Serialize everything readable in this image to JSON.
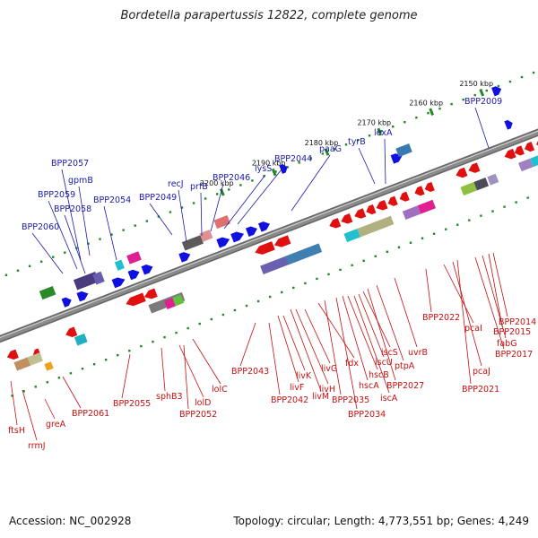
{
  "title": "Bordetella parapertussis 12822, complete genome",
  "footer": {
    "accession": "Accession: NC_002928",
    "summary": "Topology: circular; Length: 4,773,551 bp; Genes: 4,249"
  },
  "colors": {
    "forward_gene": "#1010e0",
    "reverse_gene": "#e01010",
    "backbone": "#8a8a8a",
    "tick": "#228822",
    "label_forward": "#1a1aa8",
    "label_reverse": "#c41010"
  },
  "ticks": [
    "2150 kbp",
    "2160 kbp",
    "2170 kbp",
    "2180 kbp",
    "2190 kbp",
    "2200 kbp"
  ],
  "top_labels": [
    "BPP2009",
    "lexA",
    "tyrB",
    "paaG",
    "BPP2044",
    "lysS",
    "BPP2046",
    "prfB",
    "recJ",
    "BPP2049",
    "BPP2054",
    "gpmB",
    "BPP2057",
    "BPP2059",
    "BPP2058",
    "BPP2060"
  ],
  "bottom_labels": [
    "ftsH",
    "rrmJ",
    "greA",
    "BPP2061",
    "BPP2055",
    "sphB3",
    "lolD",
    "BPP2052",
    "lolC",
    "BPP2043",
    "BPP2042",
    "livF",
    "livK",
    "livM",
    "livH",
    "livG",
    "fdx",
    "BPP2035",
    "BPP2034",
    "hscA",
    "hscB",
    "iscA",
    "iscU",
    "iscS",
    "BPP2027",
    "ptpA",
    "uvrB",
    "BPP2022",
    "pcaI",
    "pcaJ",
    "BPP2021",
    "BPP2017",
    "fabG",
    "BPP2015",
    "BPP2014"
  ]
}
